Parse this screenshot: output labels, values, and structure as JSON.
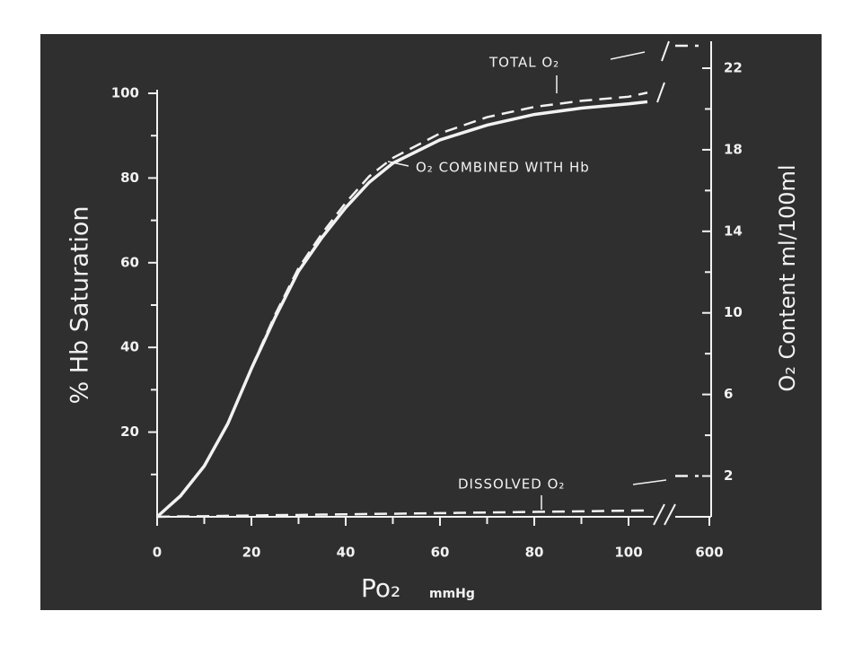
{
  "chart_data": {
    "type": "line",
    "ylabel": "% Hb Saturation",
    "y2label": "O₂ Content  ml/100ml",
    "xlabel": "Po₂",
    "xlabel_unit": "mmHg",
    "x": [
      0,
      5,
      10,
      15,
      20,
      25,
      30,
      35,
      40,
      45,
      50,
      60,
      70,
      80,
      90,
      100,
      104,
      600
    ],
    "xticks": [
      0,
      20,
      40,
      60,
      80,
      100,
      600
    ],
    "xminor": [
      10,
      30,
      50,
      70,
      90
    ],
    "ylim": [
      0,
      100
    ],
    "yticks": [
      20,
      40,
      60,
      80,
      100
    ],
    "yminor": [
      10,
      30,
      50,
      70,
      90
    ],
    "y2lim": [
      0,
      22
    ],
    "y2ticks": [
      2,
      6,
      10,
      14,
      18,
      22
    ],
    "y2minor": [
      4,
      8,
      12,
      16,
      20
    ],
    "series": [
      {
        "name": "O₂ COMBINED WITH Hb",
        "color": "#ffffff",
        "dashed": false,
        "values": [
          0,
          5,
          12,
          22,
          35,
          47,
          58,
          66,
          73,
          79,
          83.5,
          89,
          92.5,
          95,
          96.5,
          97.5,
          98,
          null
        ]
      },
      {
        "name": "TOTAL O₂",
        "color": "#ffffff",
        "dashed": true,
        "axis": "y2",
        "values": [
          0,
          1.0,
          2.5,
          4.6,
          7.3,
          9.9,
          12.2,
          13.9,
          15.4,
          16.7,
          17.6,
          18.8,
          19.6,
          20.1,
          20.4,
          20.6,
          20.8,
          23.1
        ]
      },
      {
        "name": "DISSOLVED O₂",
        "color": "#ffffff",
        "dashed": true,
        "axis": "y2",
        "values": [
          0,
          0.02,
          0.03,
          0.05,
          0.06,
          0.08,
          0.09,
          0.11,
          0.12,
          0.14,
          0.15,
          0.18,
          0.21,
          0.24,
          0.27,
          0.3,
          0.31,
          2
        ]
      }
    ]
  }
}
